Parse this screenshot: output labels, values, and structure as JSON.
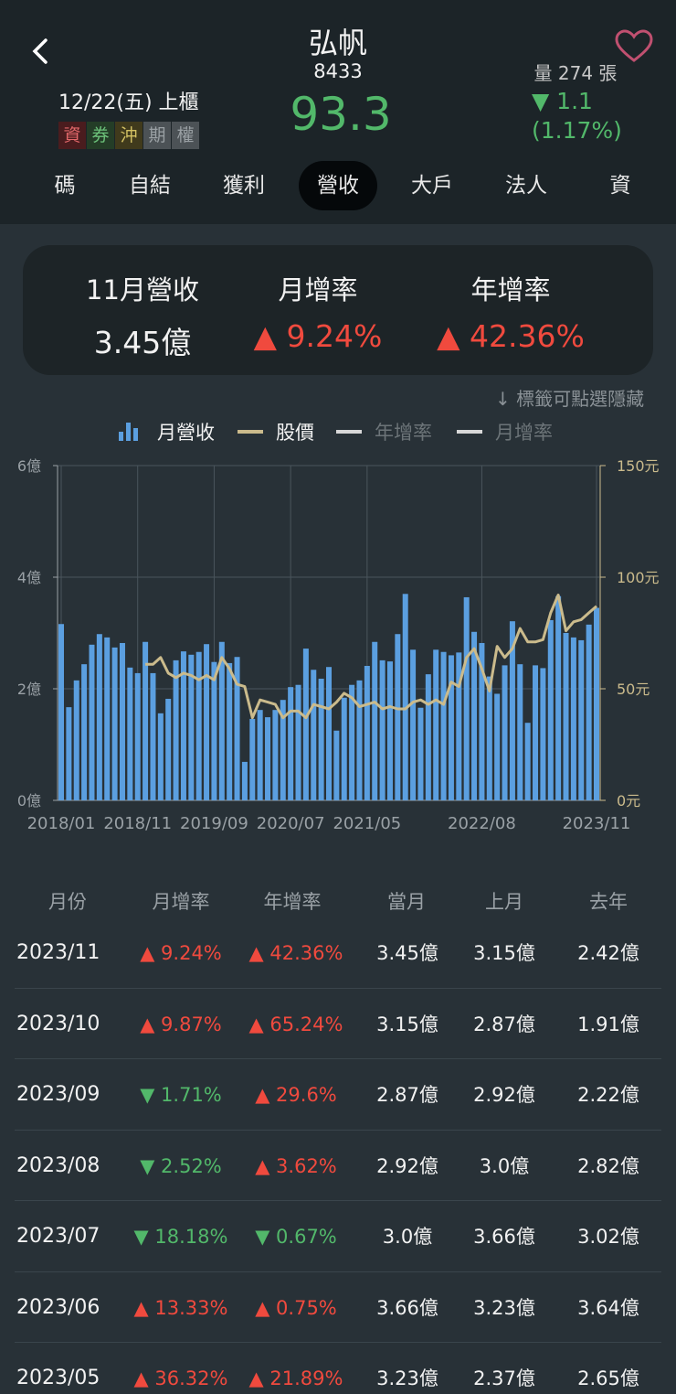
{
  "header": {
    "title": "弘帆",
    "code": "8433",
    "date": "12/22(五) 上櫃",
    "badges": [
      "資",
      "券",
      "沖",
      "期",
      "權"
    ],
    "price": "93.3",
    "volume": "量 274 張",
    "change": "▼ 1.1",
    "change_pct": "(1.17%)"
  },
  "tabs": [
    "碼",
    "自結",
    "獲利",
    "營收",
    "大戶",
    "法人",
    "資"
  ],
  "active_tab": 3,
  "summary": [
    {
      "label": "11月營收",
      "value": "3.45億"
    },
    {
      "label": "月增率",
      "value": "▲ 9.24%"
    },
    {
      "label": "年增率",
      "value": "▲ 42.36%"
    }
  ],
  "hint": "標籤可點選隱藏",
  "chart_data": {
    "type": "bar-line",
    "categories": [
      "2018/01",
      null,
      null,
      null,
      null,
      null,
      null,
      null,
      null,
      null,
      "2018/11",
      null,
      null,
      null,
      null,
      null,
      null,
      null,
      null,
      null,
      "2019/09",
      null,
      null,
      null,
      null,
      null,
      null,
      null,
      null,
      null,
      "2020/07",
      null,
      null,
      null,
      null,
      null,
      null,
      null,
      null,
      null,
      "2021/05",
      null,
      null,
      null,
      null,
      null,
      null,
      null,
      null,
      null,
      null,
      null,
      null,
      null,
      null,
      "2022/08",
      null,
      null,
      null,
      null,
      null,
      null,
      null,
      null,
      null,
      null,
      null,
      null,
      null,
      null,
      "2023/11"
    ],
    "series": [
      {
        "name": "月營收",
        "color": "#5b9fe0",
        "values": [
          3.16,
          1.67,
          2.15,
          2.44,
          2.79,
          2.98,
          2.92,
          2.74,
          2.82,
          2.38,
          2.28,
          2.84,
          2.28,
          1.56,
          1.82,
          2.51,
          2.67,
          2.61,
          2.66,
          2.8,
          2.48,
          2.84,
          2.46,
          2.57,
          0.69,
          1.46,
          1.62,
          1.49,
          1.62,
          1.8,
          2.03,
          2.07,
          2.72,
          2.34,
          2.18,
          2.39,
          1.25,
          1.84,
          2.07,
          2.15,
          2.41,
          2.84,
          2.51,
          2.49,
          2.98,
          3.7,
          2.7,
          1.66,
          2.26,
          2.7,
          2.66,
          2.6,
          2.65,
          3.64,
          3.02,
          2.82,
          2.22,
          1.91,
          2.42,
          3.21,
          2.44,
          1.39,
          2.42,
          2.37,
          3.23,
          3.66,
          3.0,
          2.92,
          2.87,
          3.15,
          3.45
        ]
      },
      {
        "name": "股價",
        "color": "#cbbb8c",
        "axis": "y2",
        "values": [
          null,
          null,
          null,
          null,
          null,
          null,
          null,
          null,
          null,
          null,
          null,
          61,
          61,
          64,
          57,
          55,
          57,
          56,
          54,
          56,
          54,
          64,
          59,
          52,
          51,
          37,
          45,
          44,
          43,
          37,
          40,
          40,
          37,
          43,
          42,
          41,
          44,
          48,
          46,
          42,
          43,
          44,
          41,
          42,
          41,
          41,
          44,
          45,
          43,
          45,
          43,
          53,
          51,
          64,
          68,
          59,
          49,
          69,
          64,
          68,
          77,
          71,
          71,
          72,
          84,
          92,
          76,
          80,
          81,
          84,
          87
        ]
      }
    ],
    "hidden_series": [
      "年增率",
      "月增率"
    ],
    "ylim": [
      0,
      6
    ],
    "yticks": [
      {
        "value": 0,
        "label": "0億"
      },
      {
        "value": 2,
        "label": "2億"
      },
      {
        "value": 4,
        "label": "4億"
      },
      {
        "value": 6,
        "label": "6億"
      }
    ],
    "y2lim": [
      0,
      150
    ],
    "y2ticks": [
      {
        "value": 0,
        "label": "0元"
      },
      {
        "value": 50,
        "label": "50元"
      },
      {
        "value": 100,
        "label": "100元"
      },
      {
        "value": 150,
        "label": "150元"
      }
    ],
    "grid": true
  },
  "table": {
    "header": [
      "月份",
      "月增率",
      "年增率",
      "當月",
      "上月",
      "去年"
    ],
    "rows": [
      [
        "2023/11",
        "▲ 9.24%",
        "▲ 42.36%",
        "3.45億",
        "3.15億",
        "2.42億"
      ],
      [
        "2023/10",
        "▲ 9.87%",
        "▲ 65.24%",
        "3.15億",
        "2.87億",
        "1.91億"
      ],
      [
        "2023/09",
        "▼ 1.71%",
        "▲ 29.6%",
        "2.87億",
        "2.92億",
        "2.22億"
      ],
      [
        "2023/08",
        "▼ 2.52%",
        "▲ 3.62%",
        "2.92億",
        "3.0億",
        "2.82億"
      ],
      [
        "2023/07",
        "▼ 18.18%",
        "▼ 0.67%",
        "3.0億",
        "3.66億",
        "3.02億"
      ],
      [
        "2023/06",
        "▲ 13.33%",
        "▲ 0.75%",
        "3.66億",
        "3.23億",
        "3.64億"
      ],
      [
        "2023/05",
        "▲ 36.32%",
        "▲ 21.89%",
        "3.23億",
        "2.37億",
        "2.65億"
      ]
    ]
  }
}
